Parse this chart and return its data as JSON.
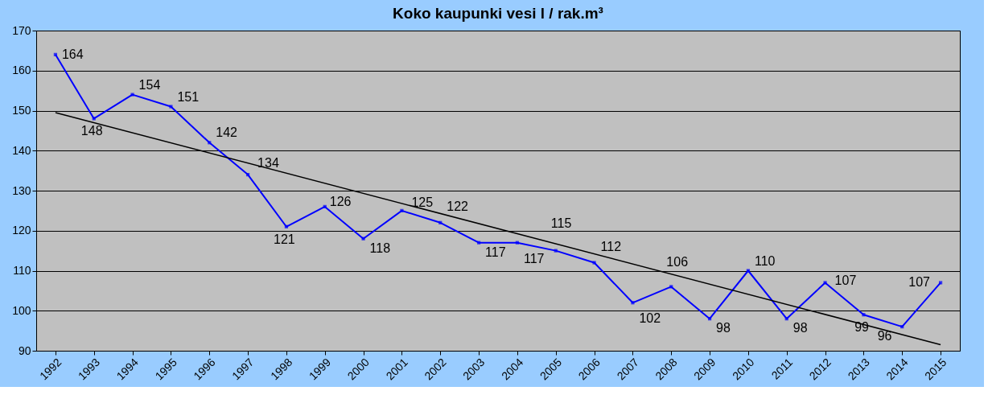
{
  "chart_data": {
    "type": "line",
    "title": "Koko kaupunki vesi  l / rak.m³",
    "categories": [
      "1992",
      "1993",
      "1994",
      "1995",
      "1996",
      "1997",
      "1998",
      "1999",
      "2000",
      "2001",
      "2002",
      "2003",
      "2004",
      "2005",
      "2006",
      "2007",
      "2008",
      "2009",
      "2010",
      "2011",
      "2012",
      "2013",
      "2014",
      "2015"
    ],
    "series": [
      {
        "color": "#0000ff",
        "values": [
          164,
          148,
          154,
          151,
          142,
          134,
          121,
          126,
          118,
          125,
          122,
          117,
          117,
          115,
          112,
          102,
          106,
          98,
          110,
          98,
          107,
          99,
          96,
          107
        ],
        "value_labels": [
          "164",
          "148",
          "154",
          "151",
          "142",
          "134",
          "121",
          "126",
          "118",
          "125",
          "122",
          "117",
          "117",
          "115",
          "112",
          "102",
          "106",
          "98",
          "110",
          "98",
          "107",
          "99",
          "96",
          "107"
        ]
      },
      {
        "type": "line",
        "color": "#000000",
        "values": [
          149.5,
          null,
          null,
          null,
          null,
          null,
          null,
          null,
          null,
          null,
          null,
          null,
          null,
          null,
          null,
          null,
          null,
          null,
          null,
          null,
          null,
          null,
          null,
          91.5
        ],
        "marker": "none"
      }
    ],
    "ylim": [
      90,
      170
    ],
    "yticks": [
      90,
      100,
      110,
      120,
      130,
      140,
      150,
      160,
      170
    ],
    "grid": "y",
    "marker": "square",
    "line_style": "solid"
  }
}
